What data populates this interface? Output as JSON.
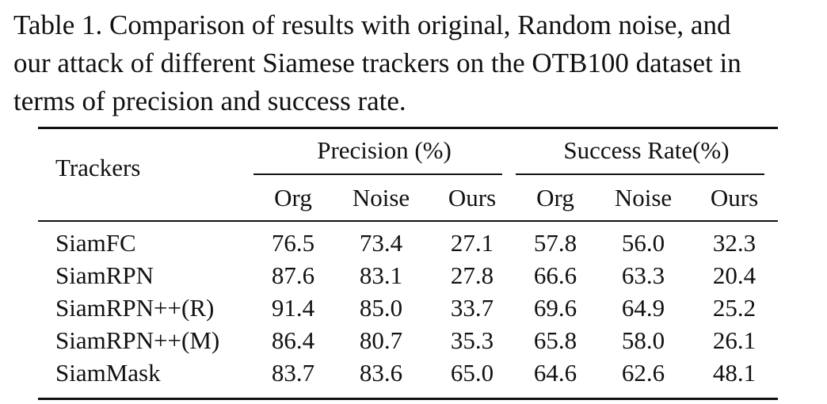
{
  "caption": {
    "lines": [
      "Table 1. Comparison of results with original, Random noise, and",
      "our attack of different Siamese trackers on the OTB100 dataset in",
      "terms of precision and success rate."
    ]
  },
  "table": {
    "row_header": "Trackers",
    "groups": [
      "Precision (%)",
      "Success Rate(%)"
    ],
    "subheaders": [
      "Org",
      "Noise",
      "Ours",
      "Org",
      "Noise",
      "Ours"
    ],
    "rows": [
      {
        "name": "SiamFC",
        "values": [
          "76.5",
          "73.4",
          "27.1",
          "57.8",
          "56.0",
          "32.3"
        ]
      },
      {
        "name": "SiamRPN",
        "values": [
          "87.6",
          "83.1",
          "27.8",
          "66.6",
          "63.3",
          "20.4"
        ]
      },
      {
        "name": "SiamRPN++(R)",
        "values": [
          "91.4",
          "85.0",
          "33.7",
          "69.6",
          "64.9",
          "25.2"
        ]
      },
      {
        "name": "SiamRPN++(M)",
        "values": [
          "86.4",
          "80.7",
          "35.3",
          "65.8",
          "58.0",
          "26.1"
        ]
      },
      {
        "name": "SiamMask",
        "values": [
          "83.7",
          "83.6",
          "65.0",
          "64.6",
          "62.6",
          "48.1"
        ]
      }
    ]
  }
}
